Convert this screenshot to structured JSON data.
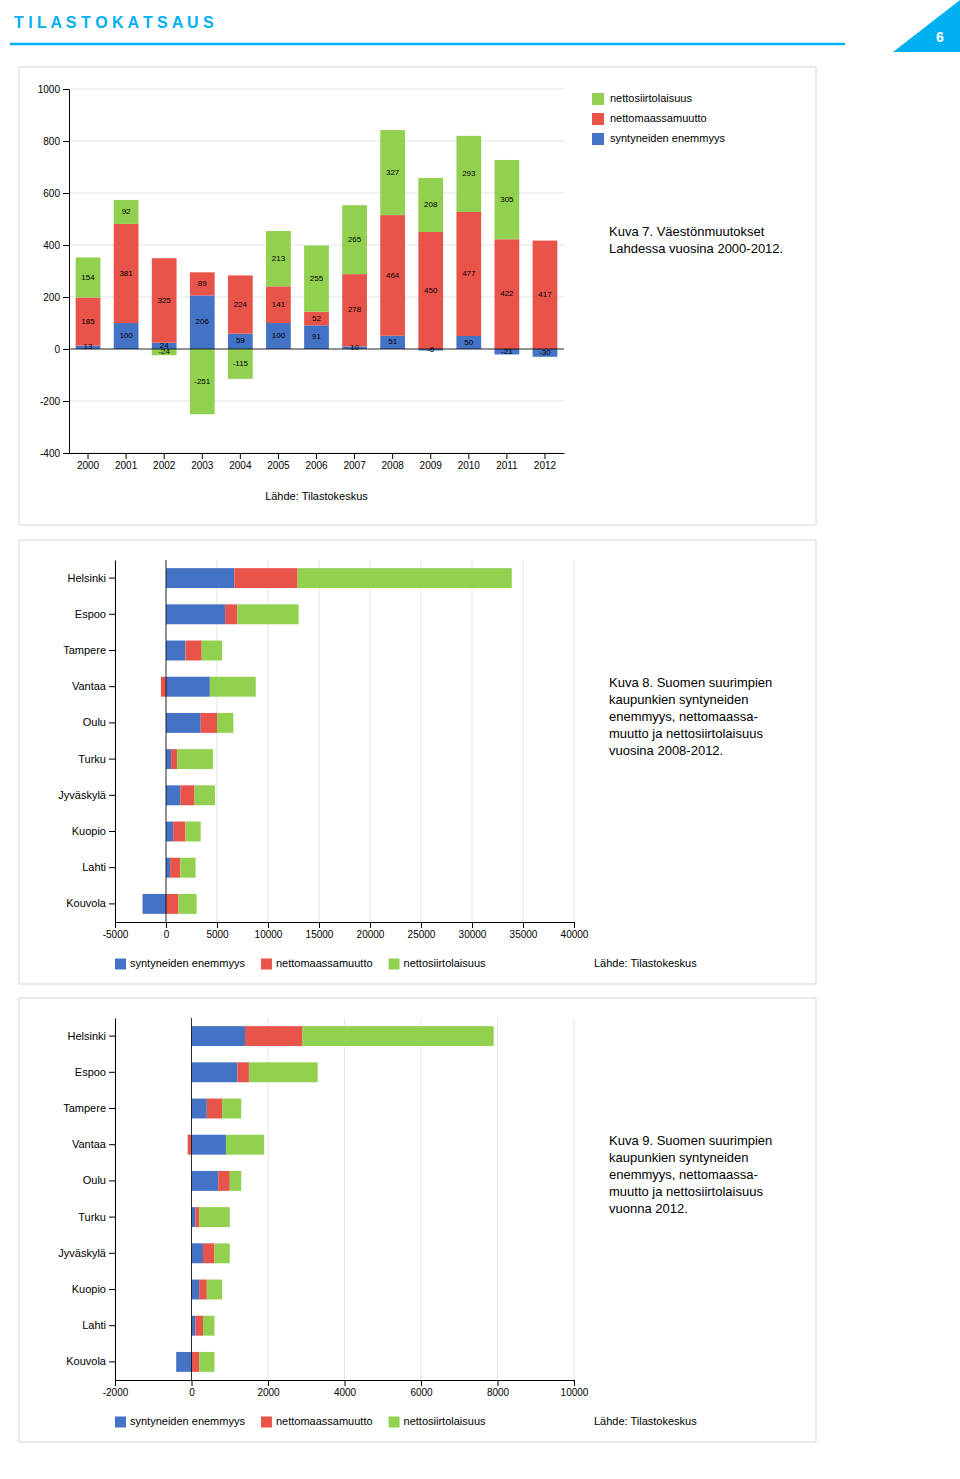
{
  "header": {
    "title": "T I L A S T O K A T S A U S",
    "page_number": "6",
    "color": "#00b0f0"
  },
  "chart_data": [
    {
      "type": "bar",
      "title": "Kuva 7. Väestönmuutokset\nLahdessa vuosina 2000-2012.",
      "annotations": [
        "Lähde: Tilastokeskus"
      ],
      "categories": [
        2000,
        2001,
        2002,
        2003,
        2004,
        2005,
        2006,
        2007,
        2008,
        2009,
        2010,
        2011,
        2012
      ],
      "series": [
        {
          "name": "syntyneiden enemmyys",
          "color": "#4472c4",
          "values": [
            13,
            100,
            24,
            206,
            59,
            100,
            91,
            10,
            51,
            -6,
            50,
            -21,
            -30
          ]
        },
        {
          "name": "nettomaassamuutto",
          "color": "#e8534a",
          "values": [
            185,
            381,
            325,
            89,
            224,
            141,
            52,
            278,
            464,
            450,
            477,
            422,
            417
          ]
        },
        {
          "name": "nettosiirtolaisuus",
          "color": "#92d050",
          "values": [
            154,
            92,
            -24,
            -251,
            -115,
            213,
            255,
            265,
            327,
            208,
            293,
            305,
            0
          ]
        }
      ],
      "stacked": true,
      "data_labels": true,
      "grid": true,
      "legend": "right",
      "ylim": [
        -400,
        1000
      ],
      "yticks": [
        -400,
        -200,
        0,
        200,
        400,
        600,
        800,
        1000
      ]
    },
    {
      "type": "bar",
      "orientation": "horizontal",
      "title": "Kuva 8. Suomen suurimpien\nkaupunkien syntyneiden\nenemmyys, nettomaassa-\nmuutto ja nettosiirtolaisuus\nvuosina 2008-2012.",
      "annotations": [
        "Lähde: Tilastokeskus"
      ],
      "categories": [
        "Helsinki",
        "Espoo",
        "Tampere",
        "Vantaa",
        "Oulu",
        "Turku",
        "Jyväskylä",
        "Kuopio",
        "Lahti",
        "Kouvola"
      ],
      "series": [
        {
          "name": "syntyneiden enemmyys",
          "color": "#4472c4",
          "values": [
            6700,
            5800,
            1900,
            4300,
            3400,
            500,
            1400,
            700,
            400,
            -2300
          ]
        },
        {
          "name": "nettomaassamuutto",
          "color": "#e8534a",
          "values": [
            6200,
            1200,
            1600,
            -500,
            1600,
            600,
            1400,
            1200,
            1000,
            1200
          ]
        },
        {
          "name": "nettosiirtolaisuus",
          "color": "#92d050",
          "values": [
            21000,
            6000,
            2000,
            4500,
            1600,
            3500,
            2000,
            1500,
            1500,
            1800
          ]
        }
      ],
      "stacked": true,
      "grid": true,
      "legend": "bottom",
      "xlim": [
        -5000,
        40000
      ],
      "xticks": [
        -5000,
        0,
        5000,
        10000,
        15000,
        20000,
        25000,
        30000,
        35000,
        40000
      ]
    },
    {
      "type": "bar",
      "orientation": "horizontal",
      "title": "Kuva 9. Suomen suurimpien\nkaupunkien syntyneiden\nenemmyys, nettomaassa-\nmuutto ja nettosiirtolaisuus\nvuonna 2012.",
      "annotations": [
        "Lähde: Tilastokeskus"
      ],
      "categories": [
        "Helsinki",
        "Espoo",
        "Tampere",
        "Vantaa",
        "Oulu",
        "Turku",
        "Jyväskylä",
        "Kuopio",
        "Lahti",
        "Kouvola"
      ],
      "series": [
        {
          "name": "syntyneiden enemmyys",
          "color": "#4472c4",
          "values": [
            1400,
            1200,
            400,
            900,
            700,
            100,
            300,
            200,
            100,
            -400
          ]
        },
        {
          "name": "nettomaassamuutto",
          "color": "#e8534a",
          "values": [
            1500,
            300,
            400,
            -100,
            300,
            100,
            300,
            200,
            200,
            200
          ]
        },
        {
          "name": "nettosiirtolaisuus",
          "color": "#92d050",
          "values": [
            5000,
            1800,
            500,
            1000,
            300,
            800,
            400,
            400,
            300,
            400
          ]
        }
      ],
      "stacked": true,
      "grid": true,
      "legend": "bottom",
      "xlim": [
        -2000,
        10000
      ],
      "xticks": [
        -2000,
        0,
        2000,
        4000,
        6000,
        8000,
        10000
      ]
    }
  ]
}
